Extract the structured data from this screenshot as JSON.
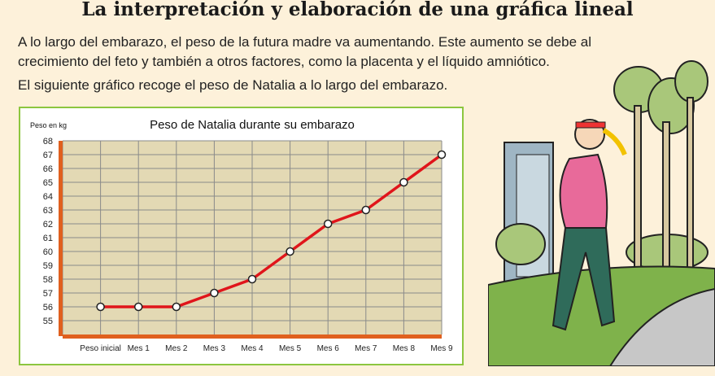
{
  "header": {
    "title": "La interpretación y elaboración de una gráfica lineal"
  },
  "intro": {
    "paragraph1": "A lo largo del embarazo, el peso de la futura madre va aumentando. Este aumento se debe al crecimiento del feto y también a otros factores, como la placenta y el líquido amniótico.",
    "paragraph2": "El siguiente gráfico recoge el peso de Natalia a lo largo del embarazo."
  },
  "chart_data": {
    "type": "line",
    "title": "Peso de Natalia durante su embarazo",
    "ylabel": "Peso en kg",
    "xlabel": "",
    "categories": [
      "Peso inicial",
      "Mes 1",
      "Mes 2",
      "Mes 3",
      "Mes 4",
      "Mes 5",
      "Mes 6",
      "Mes 7",
      "Mes 8",
      "Mes 9"
    ],
    "values": [
      56,
      56,
      56,
      57,
      58,
      60,
      62,
      63,
      65,
      67
    ],
    "yticks": [
      55,
      56,
      57,
      58,
      59,
      60,
      61,
      62,
      63,
      64,
      65,
      66,
      67,
      68
    ],
    "ylim": [
      54,
      68
    ],
    "grid": true,
    "colors": {
      "line": "#e0151b",
      "plot_bg": "#e3d9b4",
      "axis": "#e0601e",
      "grid": "#8a8a8a",
      "frame": "#8cc63f"
    }
  }
}
